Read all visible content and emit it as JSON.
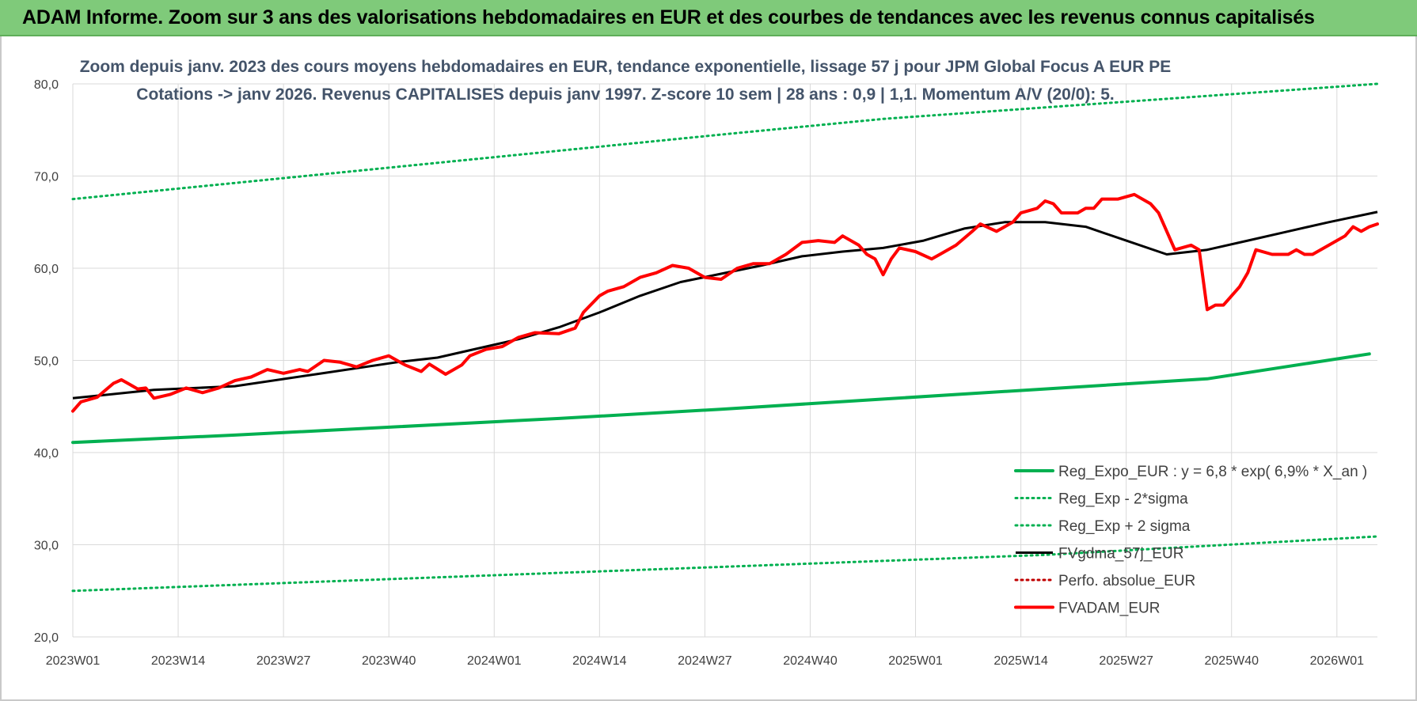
{
  "banner": {
    "title": "ADAM Informe. Zoom sur 3 ans des valorisations hebdomadaires en EUR et des courbes de tendances avec les revenus connus capitalisés"
  },
  "chart_data": {
    "type": "line",
    "title": "Zoom depuis janv. 2023 des cours moyens hebdomadaires en EUR, tendance exponentielle, lissage 57 j pour JPM Global Focus A EUR PE",
    "subtitle": "Cotations -> janv 2026. Revenus CAPITALISES depuis janv 1997. Z-score 10 sem | 28 ans : 0,9 | 1,1. Momentum A/V (20/0): 5.",
    "xlabel": "",
    "ylabel": "",
    "ylim": [
      20,
      80
    ],
    "yticks": [
      "20,0",
      "30,0",
      "40,0",
      "50,0",
      "60,0",
      "70,0",
      "80,0"
    ],
    "xticks": [
      "2023W01",
      "2023W14",
      "2023W27",
      "2023W40",
      "2024W01",
      "2024W14",
      "2024W27",
      "2024W40",
      "2025W01",
      "2025W14",
      "2025W27",
      "2025W40",
      "2026W01"
    ],
    "x_week_index_range": [
      0,
      161
    ],
    "legend_position": "bottom-right",
    "grid": true,
    "colors": {
      "reg_expo": "#00b050",
      "sigma": "#00b050",
      "fv_gdma": "#000000",
      "perfo": "#c00000",
      "fvadam": "#ff0000",
      "gridline": "#d9d9d9",
      "axis_text": "#404040"
    },
    "series": [
      {
        "name": "Reg_Expo_EUR : y = 6,8 * exp( 6,9% *  X_an )",
        "style": "solid-thick",
        "color_key": "reg_expo",
        "points": [
          [
            0,
            41.1
          ],
          [
            20,
            41.9
          ],
          [
            40,
            42.8
          ],
          [
            60,
            43.7
          ],
          [
            80,
            44.7
          ],
          [
            100,
            45.8
          ],
          [
            120,
            46.9
          ],
          [
            140,
            48.0
          ],
          [
            160,
            50.7
          ]
        ]
      },
      {
        "name": "Reg_Exp - 2*sigma",
        "style": "dotted",
        "color_key": "sigma",
        "points": [
          [
            0,
            25.0
          ],
          [
            40,
            26.3
          ],
          [
            80,
            27.6
          ],
          [
            120,
            28.9
          ],
          [
            161,
            30.9
          ]
        ]
      },
      {
        "name": "Reg_Exp + 2 sigma",
        "style": "dotted",
        "color_key": "sigma",
        "points": [
          [
            0,
            67.5
          ],
          [
            40,
            71.0
          ],
          [
            80,
            74.5
          ],
          [
            100,
            76.2
          ],
          [
            161,
            80.0
          ]
        ]
      },
      {
        "name": "FVgdma_57j_EUR",
        "style": "solid",
        "color_key": "fv_gdma",
        "points": [
          [
            0,
            45.9
          ],
          [
            10,
            46.8
          ],
          [
            20,
            47.2
          ],
          [
            30,
            48.5
          ],
          [
            40,
            49.8
          ],
          [
            45,
            50.3
          ],
          [
            50,
            51.3
          ],
          [
            55,
            52.3
          ],
          [
            60,
            53.6
          ],
          [
            65,
            55.2
          ],
          [
            70,
            57.0
          ],
          [
            75,
            58.5
          ],
          [
            80,
            59.4
          ],
          [
            85,
            60.3
          ],
          [
            90,
            61.3
          ],
          [
            95,
            61.8
          ],
          [
            100,
            62.2
          ],
          [
            105,
            63.0
          ],
          [
            110,
            64.3
          ],
          [
            115,
            65.0
          ],
          [
            120,
            65.0
          ],
          [
            125,
            64.5
          ],
          [
            130,
            63.0
          ],
          [
            135,
            61.5
          ],
          [
            140,
            62.0
          ],
          [
            145,
            63.0
          ],
          [
            150,
            64.0
          ],
          [
            155,
            65.0
          ],
          [
            161,
            66.1
          ]
        ]
      },
      {
        "name": "Perfo. absolue_EUR",
        "style": "dotted",
        "color_key": "perfo",
        "points": []
      },
      {
        "name": "FVADAM_EUR",
        "style": "solid-thick",
        "color_key": "fvadam",
        "points": [
          [
            0,
            44.5
          ],
          [
            1,
            45.5
          ],
          [
            3,
            46.0
          ],
          [
            5,
            47.5
          ],
          [
            6,
            47.9
          ],
          [
            7,
            47.4
          ],
          [
            8,
            46.9
          ],
          [
            9,
            47.0
          ],
          [
            10,
            45.9
          ],
          [
            12,
            46.3
          ],
          [
            14,
            47.0
          ],
          [
            16,
            46.5
          ],
          [
            18,
            47.0
          ],
          [
            20,
            47.8
          ],
          [
            22,
            48.2
          ],
          [
            24,
            49.0
          ],
          [
            26,
            48.6
          ],
          [
            28,
            49.0
          ],
          [
            29,
            48.8
          ],
          [
            31,
            50.0
          ],
          [
            33,
            49.8
          ],
          [
            35,
            49.3
          ],
          [
            37,
            50.0
          ],
          [
            39,
            50.5
          ],
          [
            41,
            49.5
          ],
          [
            43,
            48.8
          ],
          [
            44,
            49.6
          ],
          [
            46,
            48.5
          ],
          [
            48,
            49.5
          ],
          [
            49,
            50.5
          ],
          [
            51,
            51.2
          ],
          [
            53,
            51.5
          ],
          [
            55,
            52.5
          ],
          [
            57,
            53.0
          ],
          [
            60,
            52.9
          ],
          [
            62,
            53.5
          ],
          [
            63,
            55.2
          ],
          [
            65,
            57.0
          ],
          [
            66,
            57.5
          ],
          [
            68,
            58.0
          ],
          [
            70,
            59.0
          ],
          [
            72,
            59.5
          ],
          [
            74,
            60.3
          ],
          [
            76,
            60.0
          ],
          [
            78,
            59.0
          ],
          [
            80,
            58.8
          ],
          [
            82,
            60.0
          ],
          [
            84,
            60.5
          ],
          [
            86,
            60.5
          ],
          [
            88,
            61.5
          ],
          [
            90,
            62.8
          ],
          [
            92,
            63.0
          ],
          [
            94,
            62.8
          ],
          [
            95,
            63.5
          ],
          [
            97,
            62.5
          ],
          [
            98,
            61.5
          ],
          [
            99,
            61.0
          ],
          [
            100,
            59.3
          ],
          [
            101,
            61.0
          ],
          [
            102,
            62.2
          ],
          [
            104,
            61.8
          ],
          [
            106,
            61.0
          ],
          [
            107,
            61.5
          ],
          [
            109,
            62.5
          ],
          [
            111,
            64.0
          ],
          [
            112,
            64.8
          ],
          [
            114,
            64.0
          ],
          [
            116,
            65.0
          ],
          [
            117,
            66.0
          ],
          [
            119,
            66.5
          ],
          [
            120,
            67.3
          ],
          [
            121,
            67.0
          ],
          [
            122,
            66.0
          ],
          [
            124,
            66.0
          ],
          [
            125,
            66.5
          ],
          [
            126,
            66.5
          ],
          [
            127,
            67.5
          ],
          [
            129,
            67.5
          ],
          [
            131,
            68.0
          ],
          [
            133,
            67.0
          ],
          [
            134,
            66.0
          ],
          [
            135,
            64.0
          ],
          [
            136,
            62.0
          ],
          [
            138,
            62.5
          ],
          [
            139,
            62.0
          ],
          [
            140,
            55.5
          ],
          [
            141,
            56.0
          ],
          [
            142,
            56.0
          ],
          [
            144,
            58.0
          ],
          [
            145,
            59.5
          ],
          [
            146,
            62.0
          ],
          [
            148,
            61.5
          ],
          [
            150,
            61.5
          ],
          [
            151,
            62.0
          ],
          [
            152,
            61.5
          ],
          [
            153,
            61.5
          ],
          [
            155,
            62.5
          ],
          [
            157,
            63.5
          ],
          [
            158,
            64.5
          ],
          [
            159,
            64.0
          ],
          [
            160,
            64.5
          ],
          [
            161,
            64.8
          ]
        ]
      }
    ]
  }
}
